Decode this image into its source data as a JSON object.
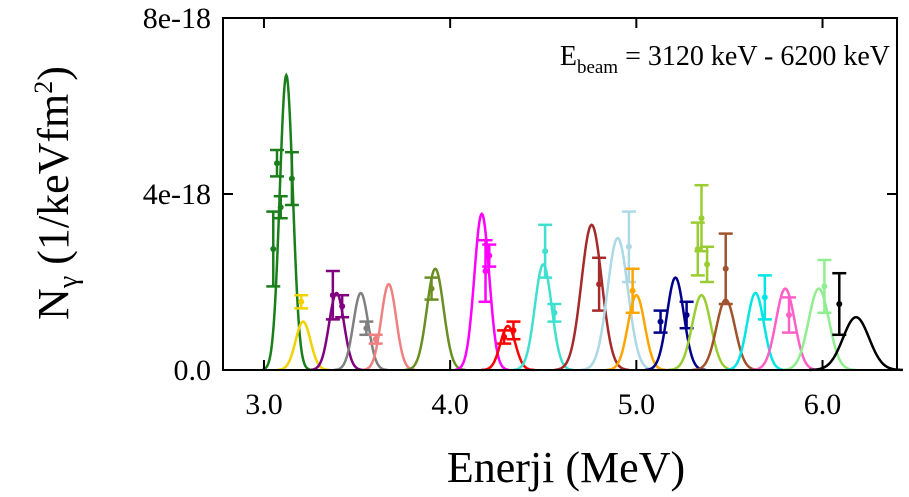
{
  "chart_data": {
    "type": "line",
    "annotation": {
      "main": "E",
      "sub": "beam",
      "rest": " = 3120 keV - 6200 keV"
    },
    "xlabel": "Enerji (MeV)",
    "ylabel": {
      "main": "N",
      "sub": "γ",
      "unit_a": " (1/keVfm",
      "sup": "2",
      "unit_b": ")"
    },
    "xlim": [
      2.78,
      6.4
    ],
    "ylim": [
      0,
      8e-18
    ],
    "x_ticks": [
      3.0,
      4.0,
      5.0,
      6.0
    ],
    "x_tick_labels": [
      "3.0",
      "4.0",
      "5.0",
      "6.0"
    ],
    "y_ticks": [
      0,
      4e-18,
      8e-18
    ],
    "y_tick_labels": [
      "0.0",
      "4e-18",
      "8e-18"
    ],
    "grid": false,
    "series": [
      {
        "color": "#1a7f1a",
        "peak": {
          "mu": 3.12,
          "sigma": 0.035,
          "amp": 6.7e-18
        },
        "points": [
          {
            "x": 3.05,
            "y": 2.75e-18,
            "err": 8.5e-19
          },
          {
            "x": 3.07,
            "y": 4.7e-18,
            "err": 3e-19
          },
          {
            "x": 3.09,
            "y": 3.7e-18,
            "err": 2.5e-19
          },
          {
            "x": 3.15,
            "y": 4.35e-18,
            "err": 6e-19
          }
        ]
      },
      {
        "color": "#f2d200",
        "peak": {
          "mu": 3.21,
          "sigma": 0.04,
          "amp": 1.1e-18
        },
        "points": [
          {
            "x": 3.2,
            "y": 1.55e-18,
            "err": 1.5e-19
          }
        ]
      },
      {
        "color": "#800080",
        "peak": {
          "mu": 3.39,
          "sigma": 0.04,
          "amp": 1.75e-18
        },
        "points": [
          {
            "x": 3.37,
            "y": 1.7e-18,
            "err": 5.5e-19
          },
          {
            "x": 3.42,
            "y": 1.45e-18,
            "err": 2.5e-19
          }
        ]
      },
      {
        "color": "#808080",
        "peak": {
          "mu": 3.52,
          "sigma": 0.04,
          "amp": 1.75e-18
        },
        "points": [
          {
            "x": 3.55,
            "y": 9.5e-19,
            "err": 1.5e-19
          }
        ]
      },
      {
        "color": "#f08080",
        "peak": {
          "mu": 3.67,
          "sigma": 0.04,
          "amp": 1.95e-18
        },
        "points": [
          {
            "x": 3.6,
            "y": 7e-19,
            "err": 1e-19
          }
        ]
      },
      {
        "color": "#6b8e23",
        "peak": {
          "mu": 3.92,
          "sigma": 0.045,
          "amp": 2.3e-18
        },
        "points": [
          {
            "x": 3.9,
            "y": 1.85e-18,
            "err": 2.5e-19
          }
        ]
      },
      {
        "color": "#ff00ff",
        "peak": {
          "mu": 4.17,
          "sigma": 0.04,
          "amp": 3.55e-18
        },
        "points": [
          {
            "x": 4.19,
            "y": 2.25e-18,
            "err": 7e-19
          },
          {
            "x": 4.21,
            "y": 2.6e-18,
            "err": 2.5e-19
          }
        ]
      },
      {
        "color": "#ff0000",
        "peak": {
          "mu": 4.31,
          "sigma": 0.04,
          "amp": 1e-18
        },
        "points": [
          {
            "x": 4.29,
            "y": 7.5e-19,
            "err": 1.5e-19
          },
          {
            "x": 4.34,
            "y": 9e-19,
            "err": 2e-19
          }
        ]
      },
      {
        "color": "#40e0d0",
        "peak": {
          "mu": 4.5,
          "sigma": 0.045,
          "amp": 2.4e-18
        },
        "points": [
          {
            "x": 4.51,
            "y": 2.7e-18,
            "err": 6e-19
          },
          {
            "x": 4.56,
            "y": 1.3e-18,
            "err": 2e-19
          }
        ]
      },
      {
        "color": "#a52a2a",
        "peak": {
          "mu": 4.76,
          "sigma": 0.055,
          "amp": 3.3e-18
        },
        "points": [
          {
            "x": 4.8,
            "y": 1.95e-18,
            "err": 6e-19
          }
        ]
      },
      {
        "color": "#add8e6",
        "peak": {
          "mu": 4.9,
          "sigma": 0.055,
          "amp": 3e-18
        },
        "points": [
          {
            "x": 4.96,
            "y": 2.8e-18,
            "err": 8e-19
          }
        ]
      },
      {
        "color": "#ffa500",
        "peak": {
          "mu": 5.0,
          "sigma": 0.045,
          "amp": 1.7e-18
        },
        "points": [
          {
            "x": 4.98,
            "y": 1.8e-18,
            "err": 5e-19
          }
        ]
      },
      {
        "color": "#00008b",
        "peak": {
          "mu": 5.21,
          "sigma": 0.045,
          "amp": 2.1e-18
        },
        "points": [
          {
            "x": 5.13,
            "y": 1.1e-18,
            "err": 2.5e-19
          },
          {
            "x": 5.27,
            "y": 1.25e-18,
            "err": 3e-19
          }
        ]
      },
      {
        "color": "#9acd32",
        "peak": {
          "mu": 5.35,
          "sigma": 0.05,
          "amp": 1.7e-18
        },
        "points": [
          {
            "x": 5.33,
            "y": 2.75e-18,
            "err": 6e-19
          },
          {
            "x": 5.35,
            "y": 3.45e-18,
            "err": 7.5e-19
          },
          {
            "x": 5.38,
            "y": 2.4e-18,
            "err": 4e-19
          }
        ]
      },
      {
        "color": "#a0522d",
        "peak": {
          "mu": 5.48,
          "sigma": 0.05,
          "amp": 1.6e-18
        },
        "points": [
          {
            "x": 5.48,
            "y": 2.3e-18,
            "err": 8e-19
          }
        ]
      },
      {
        "color": "#00e5e5",
        "peak": {
          "mu": 5.64,
          "sigma": 0.045,
          "amp": 1.75e-18
        },
        "points": [
          {
            "x": 5.69,
            "y": 1.65e-18,
            "err": 5e-19
          }
        ]
      },
      {
        "color": "#ff5fc8",
        "peak": {
          "mu": 5.8,
          "sigma": 0.05,
          "amp": 1.85e-18
        },
        "points": [
          {
            "x": 5.82,
            "y": 1.25e-18,
            "err": 4e-19
          }
        ]
      },
      {
        "color": "#90ee90",
        "peak": {
          "mu": 5.98,
          "sigma": 0.055,
          "amp": 1.85e-18
        },
        "points": [
          {
            "x": 6.01,
            "y": 1.9e-18,
            "err": 6e-19
          }
        ]
      },
      {
        "color": "#000000",
        "peak": {
          "mu": 6.18,
          "sigma": 0.07,
          "amp": 1.2e-18
        },
        "points": [
          {
            "x": 6.09,
            "y": 1.5e-18,
            "err": 7e-19
          }
        ]
      }
    ]
  }
}
